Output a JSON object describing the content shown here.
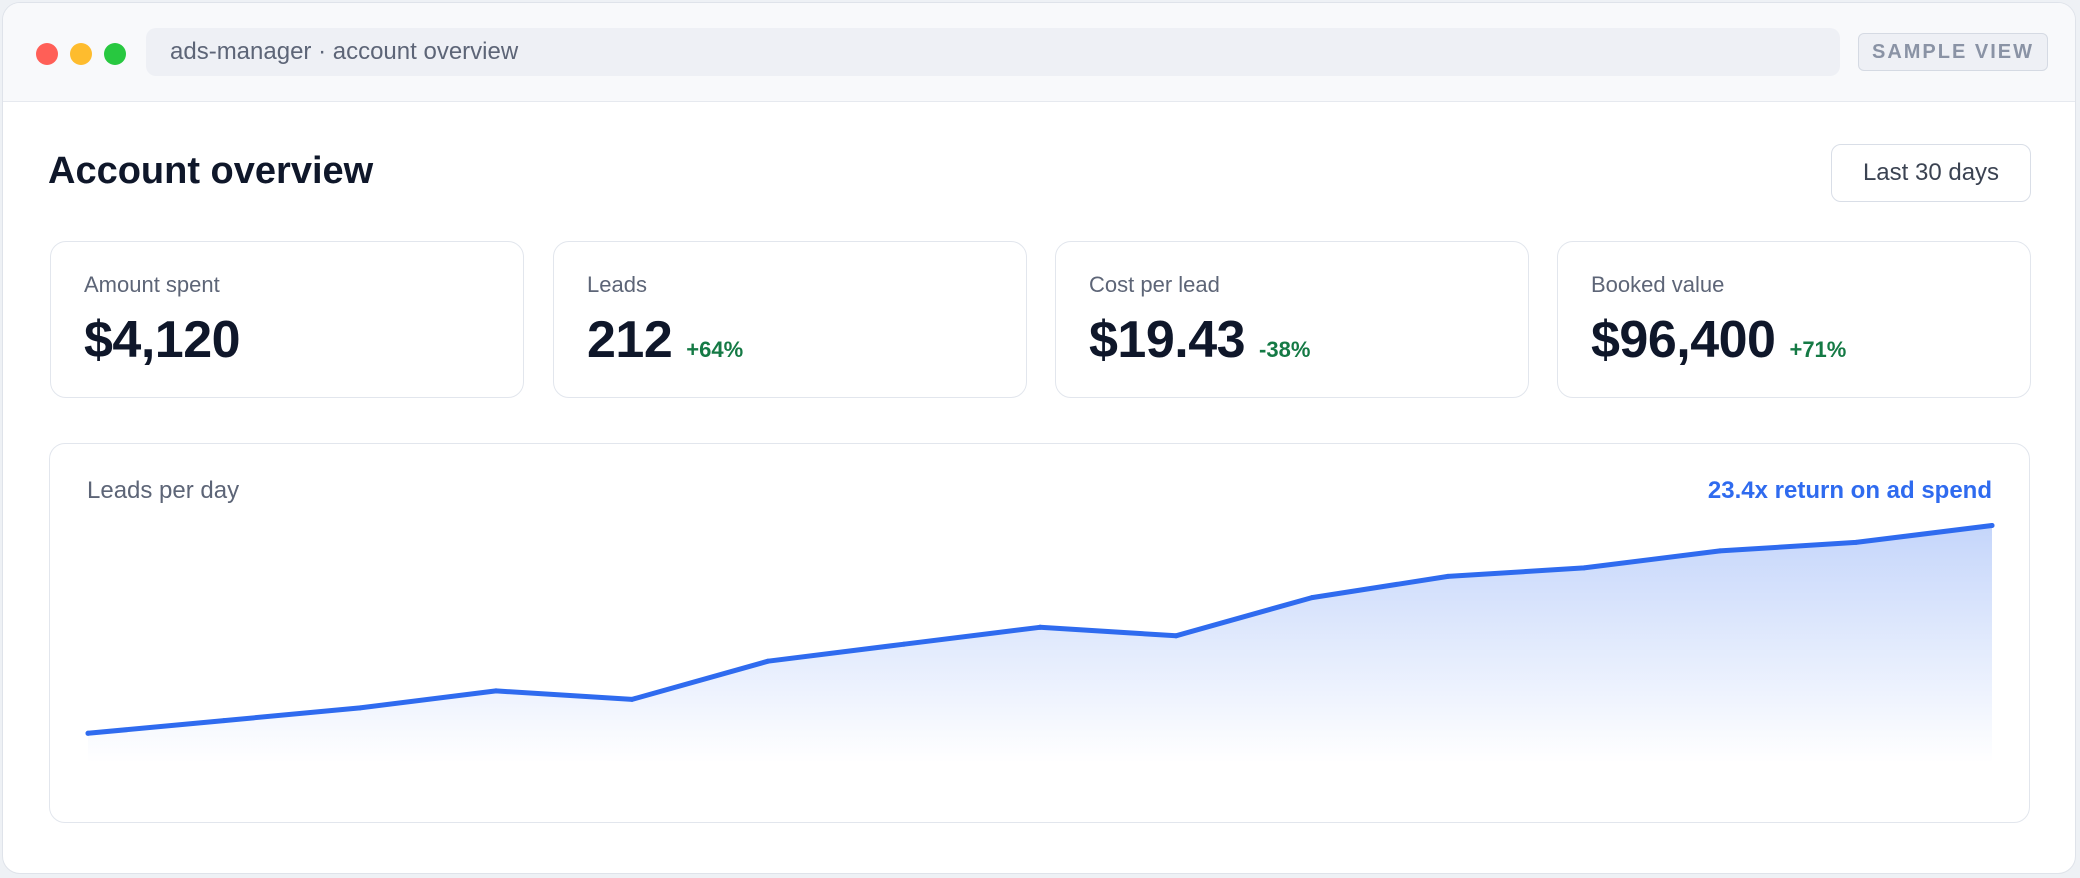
{
  "window": {
    "address": "ads-manager · account overview",
    "badge": "SAMPLE VIEW"
  },
  "header": {
    "title": "Account overview",
    "date_range": "Last 30 days"
  },
  "metrics": [
    {
      "label": "Amount spent",
      "value": "$4,120",
      "delta": ""
    },
    {
      "label": "Leads",
      "value": "212",
      "delta": "+64%"
    },
    {
      "label": "Cost per lead",
      "value": "$19.43",
      "delta": "-38%"
    },
    {
      "label": "Booked value",
      "value": "$96,400",
      "delta": "+71%"
    }
  ],
  "colors": {
    "accent": "#2f6bef",
    "positive": "#157a45",
    "close": "#ff5f57",
    "minimize": "#febc2e",
    "maximize": "#28c840"
  },
  "chart": {
    "title": "Leads per day",
    "roas": "23.4x return on ad spend"
  },
  "chart_data": {
    "type": "area",
    "title": "Leads per day",
    "xlabel": "",
    "ylabel": "",
    "grid": false,
    "legend": "none",
    "x": [
      1,
      2,
      3,
      4,
      5,
      6,
      7,
      8,
      9,
      10,
      11,
      12,
      13,
      14,
      15
    ],
    "ylim": [
      0,
      29
    ],
    "series": [
      {
        "values": [
          3.5,
          5,
          6.5,
          8.5,
          7.5,
          12,
          14,
          16,
          15,
          19.5,
          22,
          23,
          25,
          26,
          28
        ]
      }
    ]
  }
}
